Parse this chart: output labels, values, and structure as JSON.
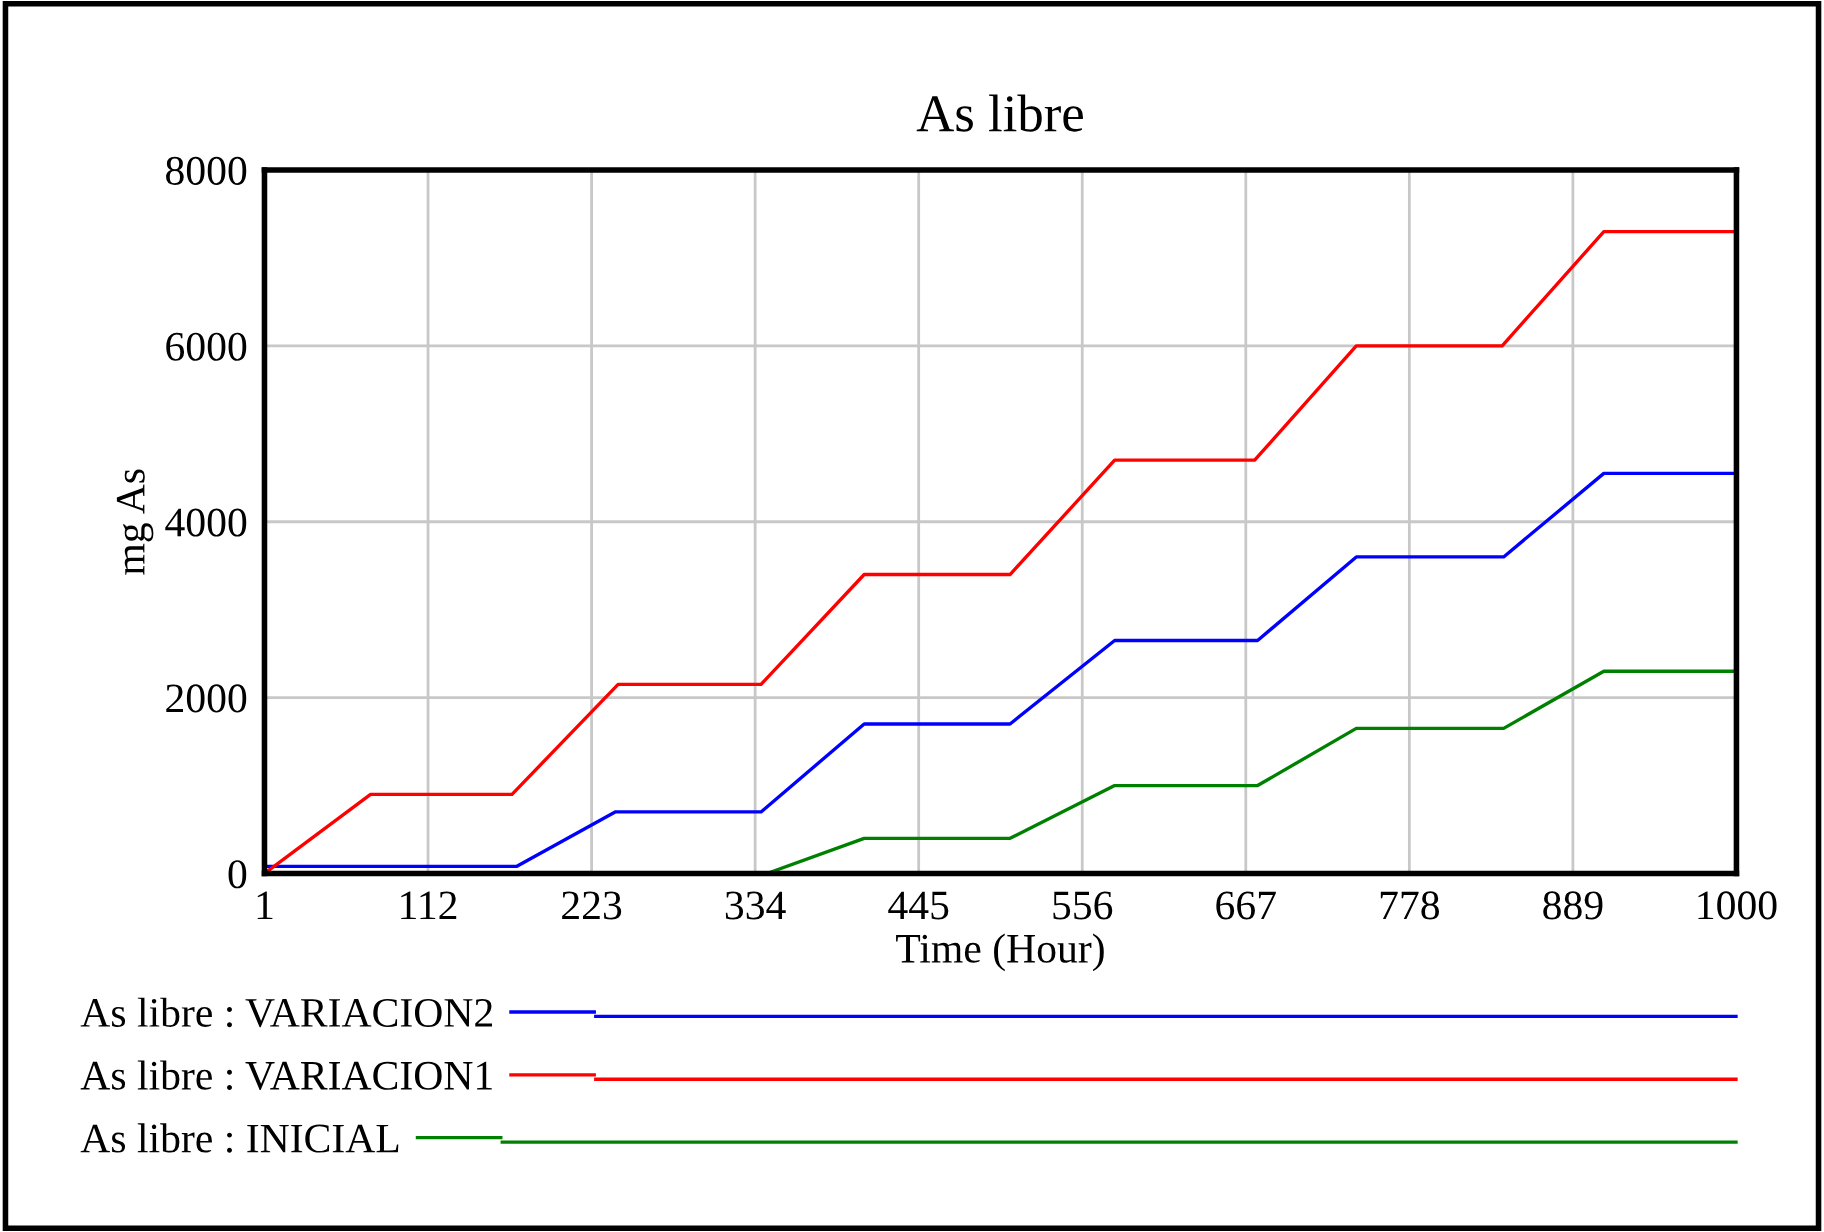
{
  "chart_data": {
    "type": "line",
    "title": "As libre",
    "xlabel": "Time (Hour)",
    "ylabel": "mg As",
    "xlim": [
      1,
      1000
    ],
    "ylim": [
      0,
      8000
    ],
    "xticks": [
      1,
      112,
      223,
      334,
      445,
      556,
      667,
      778,
      889,
      1000
    ],
    "yticks": [
      0,
      2000,
      4000,
      6000,
      8000
    ],
    "grid": true,
    "legend": "bottom",
    "line_style": "solid",
    "series": [
      {
        "name": "As libre : VARIACION2",
        "color": "#0000ff",
        "x": [
          1,
          172,
          239,
          338,
          408,
          507,
          578,
          675,
          742,
          842,
          910,
          1000
        ],
        "values": [
          80,
          80,
          700,
          700,
          1700,
          1700,
          2650,
          2650,
          3600,
          3600,
          4550,
          4550
        ]
      },
      {
        "name": "As libre : VARIACION1",
        "color": "#ff0000",
        "x": [
          1,
          73,
          169,
          241,
          338,
          408,
          507,
          578,
          673,
          742,
          841,
          910,
          1000
        ],
        "values": [
          0,
          900,
          900,
          2150,
          2150,
          3400,
          3400,
          4700,
          4700,
          6000,
          6000,
          7300,
          7300
        ]
      },
      {
        "name": "As libre : INICIAL",
        "color": "#008000",
        "x": [
          1,
          342,
          408,
          507,
          578,
          675,
          742,
          842,
          910,
          1000
        ],
        "values": [
          0,
          0,
          400,
          400,
          1000,
          1000,
          1650,
          1650,
          2300,
          2300
        ]
      }
    ]
  }
}
